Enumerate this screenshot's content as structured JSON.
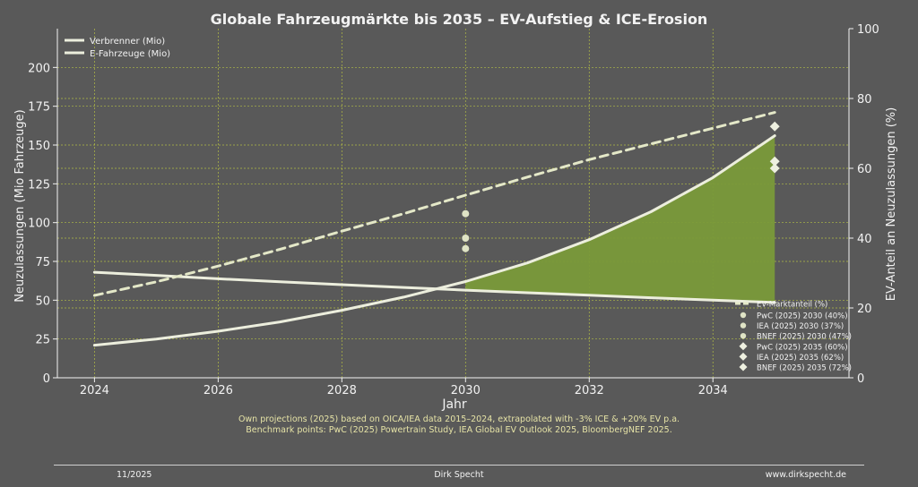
{
  "chart_data": {
    "type": "line",
    "title": "Globale Fahrzeugmärkte bis 2035 – EV-Aufstieg & ICE-Erosion",
    "xlabel": "Jahr",
    "ylabel": "Neuzulassungen (Mio Fahrzeuge)",
    "y2label": "EV-Anteil an Neuzulassungen (%)",
    "xlim": [
      2023.4,
      2036.2
    ],
    "ylim": [
      0,
      225
    ],
    "y2lim": [
      0,
      100
    ],
    "x_ticks": [
      2024,
      2026,
      2028,
      2030,
      2032,
      2034
    ],
    "y_ticks": [
      0,
      25,
      50,
      75,
      100,
      125,
      150,
      175,
      200
    ],
    "y2_ticks": [
      0,
      20,
      40,
      60,
      80,
      100
    ],
    "grid": true,
    "legend_position": "top-left",
    "legend_right_position": "bottom-right",
    "series": [
      {
        "name": "Verbrenner (Mio)",
        "axis": "left",
        "style": "solid",
        "x": [
          2024,
          2025,
          2026,
          2027,
          2028,
          2029,
          2030,
          2031,
          2032,
          2033,
          2034,
          2035
        ],
        "values": [
          68,
          66,
          63.8,
          61.9,
          60,
          58.2,
          56.5,
          54.8,
          53.2,
          51.6,
          50.0,
          48.5
        ]
      },
      {
        "name": "E-Fahrzeuge (Mio)",
        "axis": "left",
        "style": "solid",
        "x": [
          2024,
          2025,
          2026,
          2027,
          2028,
          2029,
          2030,
          2031,
          2032,
          2033,
          2034,
          2035
        ],
        "values": [
          21,
          25,
          30,
          36,
          43.5,
          52,
          62,
          74,
          89,
          107,
          129,
          156
        ]
      },
      {
        "name": "EV-Marktanteil (%)",
        "axis": "right",
        "style": "dashed",
        "x": [
          2024,
          2025,
          2026,
          2027,
          2028,
          2029,
          2030,
          2031,
          2032,
          2033,
          2034,
          2035
        ],
        "values": [
          23.6,
          27.5,
          32,
          36.8,
          42,
          47,
          52.3,
          57.5,
          62.5,
          67,
          71.5,
          76
        ]
      }
    ],
    "fill_between": {
      "from_x": 2030,
      "to_x": 2035,
      "color": "#7a9a3a"
    },
    "benchmarks": [
      {
        "label": "PwC (2025) 2030 (40%)",
        "x": 2030,
        "y": 40,
        "marker": "circle"
      },
      {
        "label": "IEA (2025) 2030 (37%)",
        "x": 2030,
        "y": 37,
        "marker": "circle"
      },
      {
        "label": "BNEF (2025) 2030 (47%)",
        "x": 2030,
        "y": 47,
        "marker": "circle"
      },
      {
        "label": "PwC (2025) 2035 (60%)",
        "x": 2035,
        "y": 60,
        "marker": "diamond"
      },
      {
        "label": "IEA (2025) 2035 (62%)",
        "x": 2035,
        "y": 62,
        "marker": "diamond"
      },
      {
        "label": "BNEF (2025) 2035 (72%)",
        "x": 2035,
        "y": 72,
        "marker": "diamond"
      }
    ],
    "colors": {
      "background": "#595959",
      "line": "#eceedd",
      "dashed": "#e4e8c8",
      "grid": "#c9d63f",
      "fill": "#7a9a3a",
      "text": "#f2f2f2"
    }
  },
  "notes": {
    "line1": "Own projections (2025) based on OICA/IEA data 2015–2024, extrapolated with -3% ICE & +20% EV p.a.",
    "line2": "Benchmark points: PwC (2025) Powertrain Study, IEA Global EV Outlook 2025, BloombergNEF 2025."
  },
  "footer": {
    "date": "11/2025",
    "author": "Dirk Specht",
    "url": "www.dirkspecht.de"
  }
}
